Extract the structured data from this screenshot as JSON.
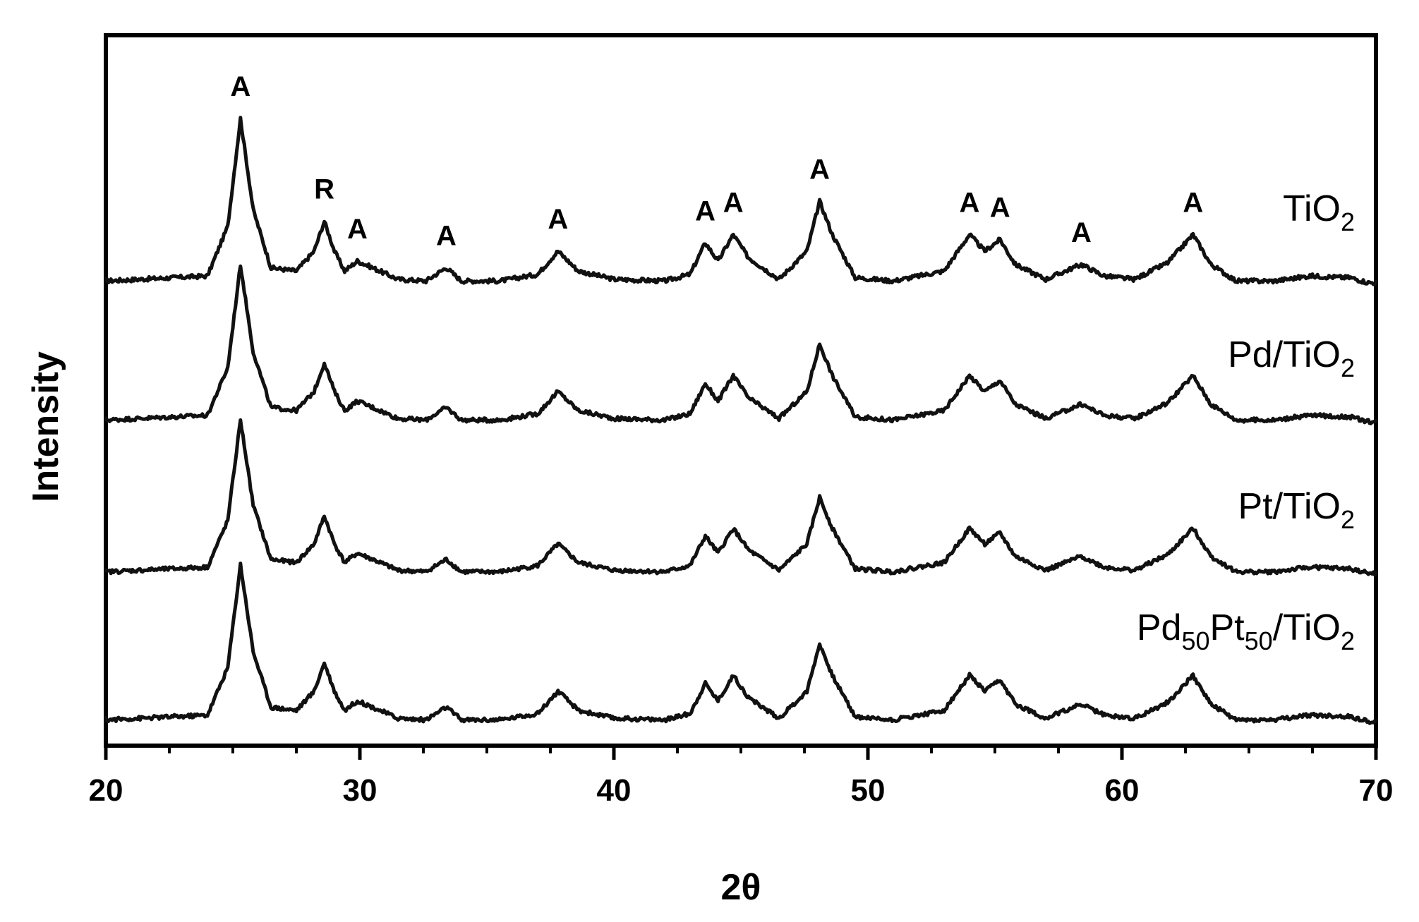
{
  "chart_data": {
    "type": "line",
    "xlabel": "2θ",
    "ylabel": "Intensity",
    "xlim": [
      20,
      70
    ],
    "x_ticks": [
      "20",
      "30",
      "40",
      "50",
      "60",
      "70"
    ],
    "y_ticks_labeled": false,
    "grid": false,
    "legend": "series labels at right end of each trace",
    "series": [
      {
        "name": "TiO2",
        "label_main": "TiO",
        "label_sub": "2",
        "x": [
          20,
          24,
          24.8,
          25.3,
          25.8,
          26.5,
          27.5,
          28.2,
          28.6,
          29.0,
          29.4,
          29.9,
          30.5,
          31.5,
          32.6,
          33.4,
          34.0,
          35.5,
          37.0,
          37.8,
          38.6,
          40.0,
          42.0,
          43.0,
          43.6,
          44.1,
          44.7,
          45.3,
          46.5,
          47.6,
          48.1,
          48.6,
          49.5,
          51.0,
          53.0,
          54.0,
          54.6,
          55.2,
          55.8,
          57.0,
          58.4,
          59.3,
          60.5,
          61.8,
          62.8,
          63.5,
          64.5,
          66.0,
          67.4,
          69.0,
          69.7,
          70
        ],
        "y": [
          0.02,
          0.05,
          0.35,
          1.0,
          0.45,
          0.1,
          0.08,
          0.2,
          0.38,
          0.2,
          0.08,
          0.14,
          0.1,
          0.03,
          0.02,
          0.1,
          0.02,
          0.02,
          0.06,
          0.2,
          0.08,
          0.03,
          0.02,
          0.06,
          0.25,
          0.14,
          0.3,
          0.16,
          0.03,
          0.2,
          0.5,
          0.3,
          0.04,
          0.02,
          0.08,
          0.3,
          0.2,
          0.27,
          0.12,
          0.03,
          0.12,
          0.05,
          0.03,
          0.13,
          0.3,
          0.12,
          0.02,
          0.02,
          0.05,
          0.04,
          0.01,
          0.01
        ]
      },
      {
        "name": "Pd/TiO2",
        "label_main": "Pd/TiO",
        "label_sub": "2",
        "x": [
          20,
          24,
          24.8,
          25.3,
          25.8,
          26.5,
          27.5,
          28.2,
          28.6,
          29.0,
          29.4,
          29.9,
          30.5,
          31.5,
          32.6,
          33.4,
          34.0,
          35.5,
          37.0,
          37.8,
          38.6,
          40.0,
          42.0,
          43.0,
          43.6,
          44.1,
          44.7,
          45.3,
          46.5,
          47.6,
          48.1,
          48.6,
          49.5,
          51.0,
          53.0,
          54.0,
          54.6,
          55.2,
          55.8,
          57.0,
          58.4,
          59.3,
          60.5,
          61.8,
          62.8,
          63.5,
          64.5,
          66.0,
          67.4,
          69.0,
          69.7,
          70
        ],
        "y": [
          0.02,
          0.05,
          0.35,
          1.0,
          0.45,
          0.1,
          0.08,
          0.2,
          0.38,
          0.2,
          0.08,
          0.14,
          0.1,
          0.03,
          0.02,
          0.1,
          0.02,
          0.02,
          0.06,
          0.2,
          0.08,
          0.03,
          0.02,
          0.06,
          0.25,
          0.14,
          0.3,
          0.16,
          0.03,
          0.2,
          0.5,
          0.3,
          0.04,
          0.02,
          0.08,
          0.3,
          0.2,
          0.27,
          0.12,
          0.03,
          0.12,
          0.05,
          0.03,
          0.13,
          0.3,
          0.12,
          0.02,
          0.02,
          0.05,
          0.04,
          0.01,
          0.01
        ]
      },
      {
        "name": "Pt/TiO2",
        "label_main": "Pt/TiO",
        "label_sub": "2",
        "x": [
          20,
          24,
          24.8,
          25.3,
          25.8,
          26.5,
          27.5,
          28.2,
          28.6,
          29.0,
          29.4,
          29.9,
          30.5,
          31.5,
          32.6,
          33.4,
          34.0,
          35.5,
          37.0,
          37.8,
          38.6,
          40.0,
          42.0,
          43.0,
          43.6,
          44.1,
          44.7,
          45.3,
          46.5,
          47.6,
          48.1,
          48.6,
          49.5,
          51.0,
          53.0,
          54.0,
          54.6,
          55.2,
          55.8,
          57.0,
          58.4,
          59.3,
          60.5,
          61.8,
          62.8,
          63.5,
          64.5,
          66.0,
          67.4,
          69.0,
          69.7,
          70
        ],
        "y": [
          0.02,
          0.05,
          0.35,
          1.0,
          0.45,
          0.1,
          0.08,
          0.2,
          0.38,
          0.2,
          0.08,
          0.14,
          0.1,
          0.03,
          0.02,
          0.1,
          0.02,
          0.02,
          0.06,
          0.2,
          0.08,
          0.03,
          0.02,
          0.06,
          0.25,
          0.14,
          0.3,
          0.16,
          0.03,
          0.2,
          0.5,
          0.3,
          0.04,
          0.02,
          0.08,
          0.3,
          0.2,
          0.27,
          0.12,
          0.03,
          0.12,
          0.05,
          0.03,
          0.13,
          0.3,
          0.12,
          0.02,
          0.02,
          0.05,
          0.04,
          0.01,
          0.01
        ]
      },
      {
        "name": "Pd50Pt50/TiO2",
        "label_parts": [
          {
            "text": "Pd",
            "sub": false
          },
          {
            "text": "50",
            "sub": true
          },
          {
            "text": "Pt",
            "sub": false
          },
          {
            "text": "50",
            "sub": true
          },
          {
            "text": "/TiO",
            "sub": false
          },
          {
            "text": "2",
            "sub": true
          }
        ],
        "x": [
          20,
          24,
          24.8,
          25.3,
          25.8,
          26.5,
          27.5,
          28.2,
          28.6,
          29.0,
          29.4,
          29.9,
          30.5,
          31.5,
          32.6,
          33.4,
          34.0,
          35.5,
          37.0,
          37.8,
          38.6,
          40.0,
          42.0,
          43.0,
          43.6,
          44.1,
          44.7,
          45.3,
          46.5,
          47.6,
          48.1,
          48.6,
          49.5,
          51.0,
          53.0,
          54.0,
          54.6,
          55.2,
          55.8,
          57.0,
          58.4,
          59.3,
          60.5,
          61.8,
          62.8,
          63.5,
          64.5,
          66.0,
          67.4,
          69.0,
          69.7,
          70
        ],
        "y": [
          0.02,
          0.05,
          0.35,
          1.0,
          0.45,
          0.1,
          0.08,
          0.2,
          0.38,
          0.2,
          0.08,
          0.14,
          0.1,
          0.03,
          0.02,
          0.1,
          0.02,
          0.02,
          0.06,
          0.2,
          0.08,
          0.03,
          0.02,
          0.06,
          0.25,
          0.14,
          0.3,
          0.16,
          0.03,
          0.2,
          0.5,
          0.3,
          0.04,
          0.02,
          0.08,
          0.3,
          0.2,
          0.27,
          0.12,
          0.03,
          0.12,
          0.05,
          0.03,
          0.13,
          0.3,
          0.12,
          0.02,
          0.02,
          0.05,
          0.04,
          0.01,
          0.01
        ]
      }
    ],
    "annotations": [
      {
        "text": "A",
        "x": 25.3
      },
      {
        "text": "R",
        "x": 28.6
      },
      {
        "text": "A",
        "x": 29.9
      },
      {
        "text": "A",
        "x": 33.4
      },
      {
        "text": "A",
        "x": 37.8
      },
      {
        "text": "A",
        "x": 43.6
      },
      {
        "text": "A",
        "x": 44.7
      },
      {
        "text": "A",
        "x": 48.1
      },
      {
        "text": "A",
        "x": 54.0
      },
      {
        "text": "A",
        "x": 55.2
      },
      {
        "text": "A",
        "x": 58.4
      },
      {
        "text": "A",
        "x": 62.8
      }
    ]
  }
}
